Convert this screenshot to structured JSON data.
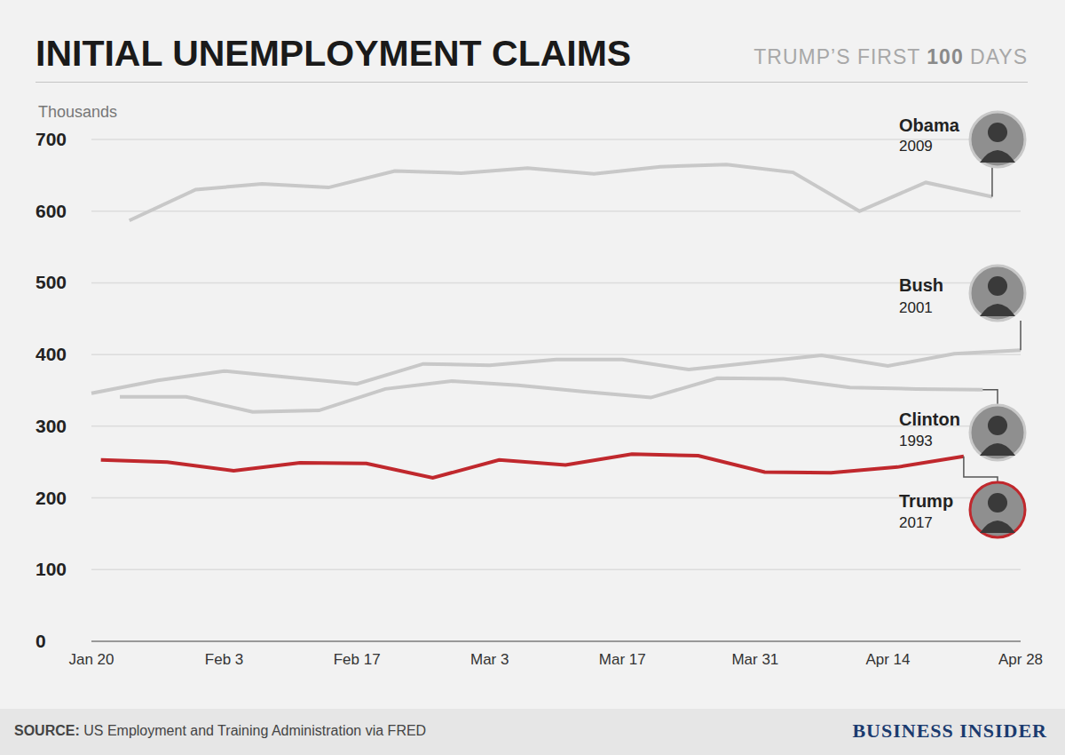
{
  "chart_data": {
    "type": "line",
    "title": "INITIAL UNEMPLOYMENT CLAIMS",
    "subtitle": "TRUMP’S FIRST 100 DAYS",
    "y_label": "Thousands",
    "source": "SOURCE: US Employment and Training Administration via FRED",
    "brand": "BUSINESS INSIDER",
    "xlim": [
      0,
      98
    ],
    "xticks": [
      {
        "value": 0,
        "label": "Jan 20"
      },
      {
        "value": 14,
        "label": "Feb 3"
      },
      {
        "value": 28,
        "label": "Feb 17"
      },
      {
        "value": 42,
        "label": "Mar 3"
      },
      {
        "value": 56,
        "label": "Mar 17"
      },
      {
        "value": 70,
        "label": "Mar 31"
      },
      {
        "value": 84,
        "label": "Apr 14"
      },
      {
        "value": 98,
        "label": "Apr 28"
      }
    ],
    "ylim": [
      0,
      700
    ],
    "yticks": [
      0,
      100,
      200,
      300,
      400,
      500,
      600,
      700
    ],
    "grid": true,
    "series": [
      {
        "name": "Obama",
        "year": "2009",
        "color": "#c8c8c8",
        "x": [
          4,
          11,
          18,
          25,
          32,
          39,
          46,
          53,
          60,
          67,
          74,
          81,
          88,
          95
        ],
        "values": [
          587,
          630,
          638,
          633,
          656,
          653,
          660,
          652,
          662,
          665,
          654,
          600,
          640,
          620
        ]
      },
      {
        "name": "Bush",
        "year": "2001",
        "color": "#c8c8c8",
        "x": [
          0,
          7,
          14,
          21,
          28,
          35,
          42,
          49,
          56,
          63,
          70,
          77,
          84,
          91,
          98
        ],
        "values": [
          346,
          364,
          377,
          368,
          359,
          387,
          385,
          393,
          393,
          379,
          389,
          399,
          384,
          401,
          406
        ]
      },
      {
        "name": "Clinton",
        "year": "1993",
        "color": "#c8c8c8",
        "x": [
          3,
          10,
          17,
          24,
          31,
          38,
          45,
          52,
          59,
          66,
          73,
          80,
          87,
          94
        ],
        "values": [
          341,
          341,
          320,
          322,
          352,
          363,
          357,
          348,
          340,
          367,
          366,
          354,
          352,
          351
        ]
      },
      {
        "name": "Trump",
        "year": "2017",
        "color": "#c0282d",
        "x": [
          1,
          8,
          15,
          22,
          29,
          36,
          43,
          50,
          57,
          64,
          71,
          78,
          85,
          92
        ],
        "values": [
          253,
          250,
          238,
          249,
          248,
          228,
          253,
          246,
          261,
          259,
          236,
          235,
          243,
          258
        ]
      }
    ]
  }
}
